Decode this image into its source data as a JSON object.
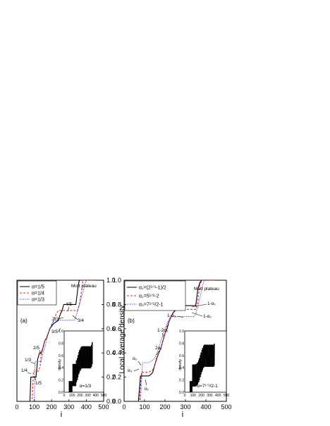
{
  "chart_data": [
    {
      "type": "line",
      "panel_label": "(a)",
      "xlabel": "i",
      "ylabel": "Local average density",
      "xlim": [
        0,
        500
      ],
      "ylim": [
        0,
        1.0
      ],
      "x_ticks": [
        "0",
        "100",
        "200",
        "300",
        "400",
        "500"
      ],
      "y_ticks": [
        "0.0",
        "0.2",
        "0.4",
        "0.6",
        "0.8",
        "1.0"
      ],
      "y_axis_side": "right",
      "legend": {
        "placement": "top-left",
        "entries": [
          "α=1/5",
          "α=1/4",
          "α=1/3"
        ]
      },
      "series": [
        {
          "name": "α=1/5",
          "color": "#000000",
          "style": "solid",
          "x": [
            65,
            75,
            80,
            95,
            110,
            120,
            130,
            140,
            150,
            160,
            170,
            180,
            190,
            200,
            210,
            220,
            230,
            240,
            250,
            260,
            270,
            280,
            290,
            300,
            310,
            320,
            330,
            340,
            345,
            350,
            355,
            360,
            370,
            400,
            450
          ],
          "y": [
            0.0,
            0.0,
            0.2,
            0.2,
            0.2,
            0.35,
            0.4,
            0.4,
            0.44,
            0.5,
            0.52,
            0.56,
            0.6,
            0.62,
            0.64,
            0.65,
            0.66,
            0.67,
            0.72,
            0.75,
            0.8,
            0.8,
            0.8,
            0.8,
            0.8,
            0.8,
            0.8,
            0.8,
            0.86,
            0.92,
            0.97,
            1.0,
            1.0,
            1.0,
            1.0
          ]
        },
        {
          "name": "α=1/4",
          "color": "#d62728",
          "style": "dashed",
          "x": [
            80,
            88,
            95,
            110,
            125,
            135,
            140,
            150,
            160,
            170,
            180,
            190,
            200,
            210,
            220,
            230,
            240,
            250,
            260,
            270,
            280,
            290,
            300,
            310,
            320,
            330,
            340,
            350,
            360,
            370,
            375,
            380,
            390,
            400,
            450
          ],
          "y": [
            0.0,
            0.0,
            0.25,
            0.25,
            0.25,
            0.3,
            0.38,
            0.44,
            0.5,
            0.52,
            0.56,
            0.6,
            0.63,
            0.66,
            0.7,
            0.73,
            0.75,
            0.75,
            0.75,
            0.75,
            0.75,
            0.75,
            0.75,
            0.75,
            0.75,
            0.75,
            0.75,
            0.75,
            0.8,
            0.88,
            0.94,
            1.0,
            1.0,
            1.0,
            1.0
          ]
        },
        {
          "name": "α=1/3",
          "color": "#2030c8",
          "style": "dotted",
          "x": [
            90,
            100,
            105,
            120,
            140,
            150,
            160,
            170,
            180,
            190,
            200,
            210,
            220,
            230,
            240,
            250,
            260,
            270,
            280,
            290,
            300,
            310,
            320,
            330,
            340,
            350,
            360,
            370,
            380,
            390,
            395,
            400,
            410,
            450
          ],
          "y": [
            0.0,
            0.0,
            0.33,
            0.33,
            0.33,
            0.4,
            0.44,
            0.5,
            0.56,
            0.6,
            0.63,
            0.66,
            0.67,
            0.67,
            0.67,
            0.67,
            0.67,
            0.67,
            0.67,
            0.67,
            0.67,
            0.67,
            0.67,
            0.67,
            0.7,
            0.75,
            0.8,
            0.85,
            0.9,
            0.95,
            0.98,
            1.0,
            1.0,
            1.0
          ]
        }
      ],
      "annotations": [
        "Mott plateau",
        "4/5",
        "3/4",
        "2/3",
        "3/5",
        "2/5",
        "1/3",
        "1/4",
        "1/5"
      ],
      "inset": {
        "label": "α=1/3",
        "ylabel": "density",
        "xlim": [
          0,
          500
        ],
        "ylim": [
          0,
          1.0
        ],
        "x_ticks": [
          "0",
          "100",
          "200",
          "300",
          "400",
          "500"
        ],
        "y_ticks": [
          "0.0",
          "0.2",
          "0.4",
          "0.6",
          "0.8",
          "1.0"
        ]
      }
    },
    {
      "type": "line",
      "panel_label": "(b)",
      "xlabel": "i",
      "ylabel": "",
      "xlim": [
        0,
        500
      ],
      "ylim": [
        0,
        1.0
      ],
      "x_ticks": [
        "0",
        "100",
        "200",
        "300",
        "400",
        "500"
      ],
      "y_ticks": [
        "0.0",
        "0.2",
        "0.4",
        "0.6",
        "0.8",
        "1.0"
      ],
      "y_axis_side": "left",
      "legend": {
        "placement": "top-left",
        "entries": [
          "α₁=(2¹ᐟ²-1)/2",
          "α₂=5¹ᐟ²-2",
          "α₃=7¹ᐟ²/2-1"
        ]
      },
      "series": [
        {
          "name": "α₁=(2¹ᐟ²-1)/2",
          "color": "#000000",
          "style": "solid",
          "x": [
            60,
            70,
            80,
            110,
            120,
            130,
            140,
            150,
            160,
            170,
            180,
            190,
            200,
            210,
            220,
            230,
            240,
            250,
            260,
            270,
            280,
            290,
            300,
            310,
            320,
            330,
            340,
            350,
            355,
            360,
            370,
            380,
            400,
            450
          ],
          "y": [
            0.0,
            0.0,
            0.21,
            0.21,
            0.21,
            0.22,
            0.24,
            0.3,
            0.36,
            0.4,
            0.44,
            0.5,
            0.56,
            0.6,
            0.66,
            0.7,
            0.73,
            0.75,
            0.79,
            0.79,
            0.79,
            0.79,
            0.79,
            0.79,
            0.79,
            0.79,
            0.79,
            0.79,
            0.85,
            0.92,
            0.98,
            1.0,
            1.0,
            1.0
          ]
        },
        {
          "name": "α₂=5¹ᐟ²-2",
          "color": "#d62728",
          "style": "dashed",
          "x": [
            65,
            75,
            85,
            110,
            120,
            130,
            140,
            150,
            160,
            170,
            180,
            190,
            200,
            210,
            220,
            230,
            240,
            250,
            260,
            270,
            280,
            290,
            300,
            310,
            320,
            330,
            340,
            350,
            360,
            365,
            370,
            380,
            400,
            450
          ],
          "y": [
            0.0,
            0.0,
            0.24,
            0.24,
            0.24,
            0.25,
            0.26,
            0.3,
            0.35,
            0.4,
            0.44,
            0.5,
            0.56,
            0.62,
            0.66,
            0.7,
            0.74,
            0.76,
            0.76,
            0.76,
            0.76,
            0.76,
            0.76,
            0.76,
            0.76,
            0.76,
            0.76,
            0.76,
            0.82,
            0.9,
            0.96,
            1.0,
            1.0,
            1.0
          ]
        },
        {
          "name": "α₃=7¹ᐟ²/2-1",
          "color": "#2030c8",
          "style": "dotted",
          "x": [
            70,
            80,
            90,
            110,
            120,
            130,
            140,
            150,
            160,
            170,
            180,
            190,
            200,
            210,
            220,
            230,
            240,
            250,
            260,
            270,
            280,
            290,
            300,
            310,
            320,
            330,
            340,
            350,
            360,
            370,
            380,
            385,
            390,
            400,
            450
          ],
          "y": [
            0.0,
            0.0,
            0.32,
            0.32,
            0.32,
            0.33,
            0.34,
            0.36,
            0.4,
            0.44,
            0.5,
            0.55,
            0.6,
            0.64,
            0.68,
            0.7,
            0.7,
            0.7,
            0.7,
            0.7,
            0.7,
            0.7,
            0.7,
            0.7,
            0.7,
            0.7,
            0.7,
            0.72,
            0.78,
            0.85,
            0.92,
            0.96,
            0.99,
            1.0,
            1.0
          ]
        }
      ],
      "annotations": [
        "Mott plateau",
        "1-α₁",
        "1-α₂",
        "1-α₃",
        "1-2α₁",
        "2α₁",
        "α₂",
        "α₃",
        "α₁"
      ],
      "inset": {
        "label": "α=7¹ᐟ²/2-1",
        "ylabel": "density",
        "xlim": [
          0,
          500
        ],
        "ylim": [
          0,
          1.0
        ],
        "x_ticks": [
          "0",
          "100",
          "200",
          "300",
          "400",
          "500"
        ],
        "y_ticks": [
          "0.0",
          "0.2",
          "0.4",
          "0.6",
          "0.8",
          "1.0"
        ]
      }
    }
  ]
}
